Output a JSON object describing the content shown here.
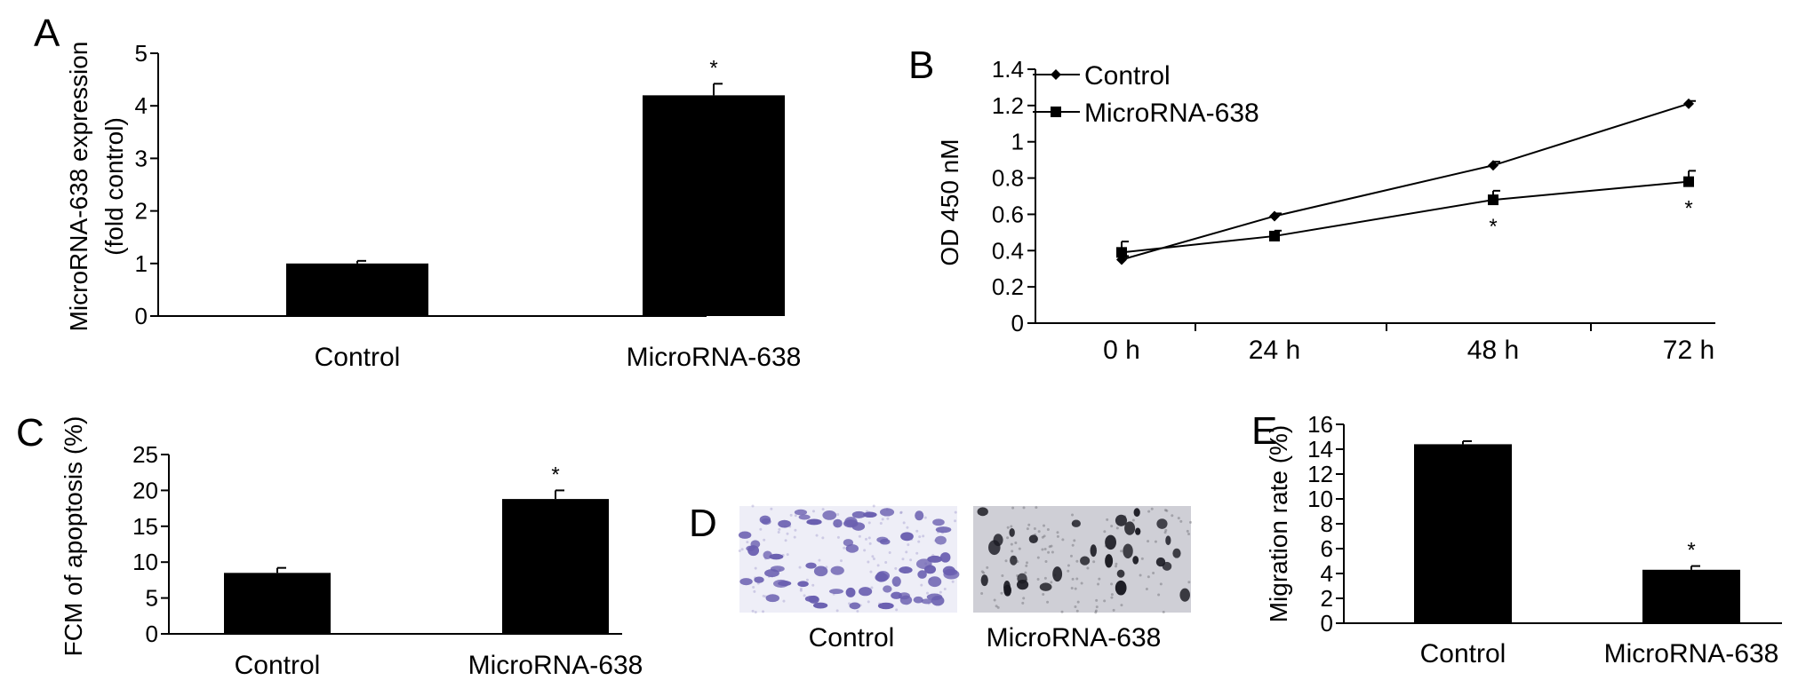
{
  "chart_data": [
    {
      "panel": "A",
      "type": "bar",
      "ylabel": "MicroRNA-638 expression (fold control)",
      "ylabel_lines": [
        "MicroRNA-638 expression",
        "(fold control)"
      ],
      "categories": [
        "Control",
        "MicroRNA-638"
      ],
      "values": [
        1.0,
        4.2
      ],
      "errors": [
        0.05,
        0.22
      ],
      "annotations": [
        "",
        "*"
      ],
      "ylim": [
        0,
        5
      ],
      "yticks": [
        0,
        1,
        2,
        3,
        4,
        5
      ]
    },
    {
      "panel": "B",
      "type": "line",
      "ylabel": "OD 450 nM",
      "categories": [
        "0 h",
        "24 h",
        "48 h",
        "72 h"
      ],
      "ylim": [
        0,
        1.4
      ],
      "yticks": [
        0,
        0.2,
        0.4,
        0.6,
        0.8,
        1,
        1.2,
        1.4
      ],
      "legend_position": "top-left",
      "series": [
        {
          "name": "Control",
          "marker": "diamond",
          "values": [
            0.35,
            0.59,
            0.87,
            1.21
          ],
          "errors": [
            0.02,
            0.015,
            0.02,
            0.015
          ],
          "annotations": [
            "",
            "",
            "",
            ""
          ]
        },
        {
          "name": "MicroRNA-638",
          "marker": "square",
          "values": [
            0.39,
            0.48,
            0.68,
            0.78
          ],
          "errors": [
            0.06,
            0.03,
            0.05,
            0.06
          ],
          "annotations": [
            "",
            "",
            "*",
            "*"
          ]
        }
      ]
    },
    {
      "panel": "C",
      "type": "bar",
      "ylabel": "FCM of apoptosis (%)",
      "categories": [
        "Control",
        "MicroRNA-638"
      ],
      "values": [
        8.5,
        18.8
      ],
      "errors": [
        0.7,
        1.2
      ],
      "annotations": [
        "",
        "*"
      ],
      "ylim": [
        0,
        25
      ],
      "yticks": [
        0,
        5,
        10,
        15,
        20,
        25
      ]
    },
    {
      "panel": "E",
      "type": "bar",
      "ylabel": "Migration rate (%)",
      "categories": [
        "Control",
        "MicroRNA-638"
      ],
      "values": [
        14.4,
        4.3
      ],
      "errors": [
        0.25,
        0.3
      ],
      "annotations": [
        "",
        "*"
      ],
      "ylim": [
        0,
        16
      ],
      "yticks": [
        0,
        2,
        4,
        6,
        8,
        10,
        12,
        14,
        16
      ]
    }
  ],
  "panel_d": {
    "letter": "D",
    "labels": [
      "Control",
      "MicroRNA-638"
    ],
    "images": [
      "transwell-control-image",
      "transwell-microrna-638-image"
    ]
  },
  "colors": {
    "bar": "#000000",
    "axis": "#000000",
    "stain_background_control": "#eeeef7",
    "stain_cells_control": "#6a5fb0",
    "stain_background_treated": "#cfcfd6",
    "stain_cells_treated": "#1a1a22"
  }
}
